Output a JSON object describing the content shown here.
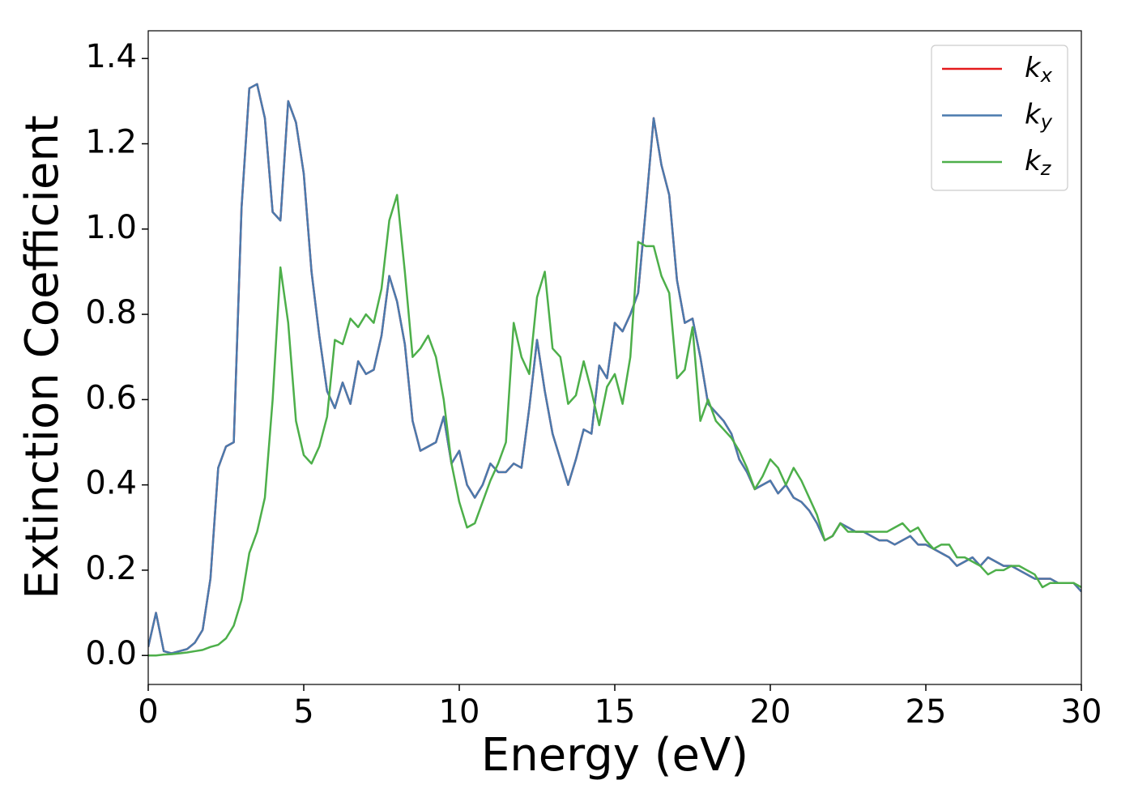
{
  "chart_data": {
    "type": "line",
    "xlabel": "Energy (eV)",
    "ylabel": "Extinction Coefficient",
    "x": [
      0,
      0.25,
      0.5,
      0.75,
      1,
      1.25,
      1.5,
      1.75,
      2,
      2.25,
      2.5,
      2.75,
      3,
      3.25,
      3.5,
      3.75,
      4,
      4.25,
      4.5,
      4.75,
      5,
      5.25,
      5.5,
      5.75,
      6,
      6.25,
      6.5,
      6.75,
      7,
      7.25,
      7.5,
      7.75,
      8,
      8.25,
      8.5,
      8.75,
      9,
      9.25,
      9.5,
      9.75,
      10,
      10.25,
      10.5,
      10.75,
      11,
      11.25,
      11.5,
      11.75,
      12,
      12.25,
      12.5,
      12.75,
      13,
      13.25,
      13.5,
      13.75,
      14,
      14.25,
      14.5,
      14.75,
      15,
      15.25,
      15.5,
      15.75,
      16,
      16.25,
      16.5,
      16.75,
      17,
      17.25,
      17.5,
      17.75,
      18,
      18.25,
      18.5,
      18.75,
      19,
      19.25,
      19.5,
      19.75,
      20,
      20.25,
      20.5,
      20.75,
      21,
      21.25,
      21.5,
      21.75,
      22,
      22.25,
      22.5,
      22.75,
      23,
      23.25,
      23.5,
      23.75,
      24,
      24.25,
      24.5,
      24.75,
      25,
      25.25,
      25.5,
      25.75,
      26,
      26.25,
      26.5,
      26.75,
      27,
      27.25,
      27.5,
      27.75,
      28,
      28.25,
      28.5,
      28.75,
      29,
      29.25,
      29.5,
      29.75,
      30
    ],
    "series": [
      {
        "name": "k_x",
        "color": "#e41a1c",
        "values": [
          0.02,
          0.1,
          0.01,
          0.005,
          0.01,
          0.015,
          0.03,
          0.06,
          0.18,
          0.44,
          0.49,
          0.5,
          1.05,
          1.33,
          1.34,
          1.26,
          1.04,
          1.02,
          1.3,
          1.25,
          1.13,
          0.9,
          0.75,
          0.62,
          0.58,
          0.64,
          0.59,
          0.69,
          0.66,
          0.67,
          0.75,
          0.89,
          0.83,
          0.73,
          0.55,
          0.48,
          0.49,
          0.5,
          0.56,
          0.45,
          0.48,
          0.4,
          0.37,
          0.4,
          0.45,
          0.43,
          0.43,
          0.45,
          0.44,
          0.58,
          0.74,
          0.62,
          0.52,
          0.46,
          0.4,
          0.46,
          0.53,
          0.52,
          0.68,
          0.65,
          0.78,
          0.76,
          0.8,
          0.85,
          1.05,
          1.26,
          1.15,
          1.08,
          0.88,
          0.78,
          0.79,
          0.7,
          0.59,
          0.57,
          0.55,
          0.52,
          0.46,
          0.43,
          0.39,
          0.4,
          0.41,
          0.38,
          0.4,
          0.37,
          0.36,
          0.34,
          0.31,
          0.27,
          0.28,
          0.31,
          0.3,
          0.29,
          0.29,
          0.28,
          0.27,
          0.27,
          0.26,
          0.27,
          0.28,
          0.26,
          0.26,
          0.25,
          0.24,
          0.23,
          0.21,
          0.22,
          0.23,
          0.21,
          0.23,
          0.22,
          0.21,
          0.21,
          0.2,
          0.19,
          0.18,
          0.18,
          0.18,
          0.17,
          0.17,
          0.17,
          0.15
        ]
      },
      {
        "name": "k_y",
        "color": "#4a7aad",
        "values": [
          0.02,
          0.1,
          0.01,
          0.005,
          0.01,
          0.015,
          0.03,
          0.06,
          0.18,
          0.44,
          0.49,
          0.5,
          1.05,
          1.33,
          1.34,
          1.26,
          1.04,
          1.02,
          1.3,
          1.25,
          1.13,
          0.9,
          0.75,
          0.62,
          0.58,
          0.64,
          0.59,
          0.69,
          0.66,
          0.67,
          0.75,
          0.89,
          0.83,
          0.73,
          0.55,
          0.48,
          0.49,
          0.5,
          0.56,
          0.45,
          0.48,
          0.4,
          0.37,
          0.4,
          0.45,
          0.43,
          0.43,
          0.45,
          0.44,
          0.58,
          0.74,
          0.62,
          0.52,
          0.46,
          0.4,
          0.46,
          0.53,
          0.52,
          0.68,
          0.65,
          0.78,
          0.76,
          0.8,
          0.85,
          1.05,
          1.26,
          1.15,
          1.08,
          0.88,
          0.78,
          0.79,
          0.7,
          0.59,
          0.57,
          0.55,
          0.52,
          0.46,
          0.43,
          0.39,
          0.4,
          0.41,
          0.38,
          0.4,
          0.37,
          0.36,
          0.34,
          0.31,
          0.27,
          0.28,
          0.31,
          0.3,
          0.29,
          0.29,
          0.28,
          0.27,
          0.27,
          0.26,
          0.27,
          0.28,
          0.26,
          0.26,
          0.25,
          0.24,
          0.23,
          0.21,
          0.22,
          0.23,
          0.21,
          0.23,
          0.22,
          0.21,
          0.21,
          0.2,
          0.19,
          0.18,
          0.18,
          0.18,
          0.17,
          0.17,
          0.17,
          0.15
        ]
      },
      {
        "name": "k_z",
        "color": "#4daf4a",
        "values": [
          0,
          0,
          0.002,
          0.003,
          0.005,
          0.007,
          0.01,
          0.013,
          0.02,
          0.025,
          0.04,
          0.07,
          0.13,
          0.24,
          0.29,
          0.37,
          0.6,
          0.91,
          0.78,
          0.55,
          0.47,
          0.45,
          0.49,
          0.56,
          0.74,
          0.73,
          0.79,
          0.77,
          0.8,
          0.78,
          0.86,
          1.02,
          1.08,
          0.9,
          0.7,
          0.72,
          0.75,
          0.7,
          0.6,
          0.45,
          0.36,
          0.3,
          0.31,
          0.36,
          0.41,
          0.45,
          0.5,
          0.78,
          0.7,
          0.66,
          0.84,
          0.9,
          0.72,
          0.7,
          0.59,
          0.61,
          0.69,
          0.62,
          0.54,
          0.63,
          0.66,
          0.59,
          0.7,
          0.97,
          0.96,
          0.96,
          0.89,
          0.85,
          0.65,
          0.67,
          0.77,
          0.55,
          0.6,
          0.55,
          0.53,
          0.51,
          0.48,
          0.44,
          0.39,
          0.42,
          0.46,
          0.44,
          0.4,
          0.44,
          0.41,
          0.37,
          0.33,
          0.27,
          0.28,
          0.31,
          0.29,
          0.29,
          0.29,
          0.29,
          0.29,
          0.29,
          0.3,
          0.31,
          0.29,
          0.3,
          0.27,
          0.25,
          0.26,
          0.26,
          0.23,
          0.23,
          0.22,
          0.21,
          0.19,
          0.2,
          0.2,
          0.21,
          0.21,
          0.2,
          0.19,
          0.16,
          0.17,
          0.17,
          0.17,
          0.17,
          0.16
        ]
      }
    ],
    "xlim": [
      0,
      30
    ],
    "xticks": [
      0,
      5,
      10,
      15,
      20,
      25,
      30
    ],
    "ylim": [
      -0.068,
      1.465
    ],
    "yticks": [
      {
        "value": 0,
        "label": "0.0"
      },
      0.2,
      0.4,
      0.6,
      0.8,
      {
        "value": 1,
        "label": "1.0"
      },
      1.2,
      1.4
    ],
    "legend": "upper right",
    "grid": false
  }
}
